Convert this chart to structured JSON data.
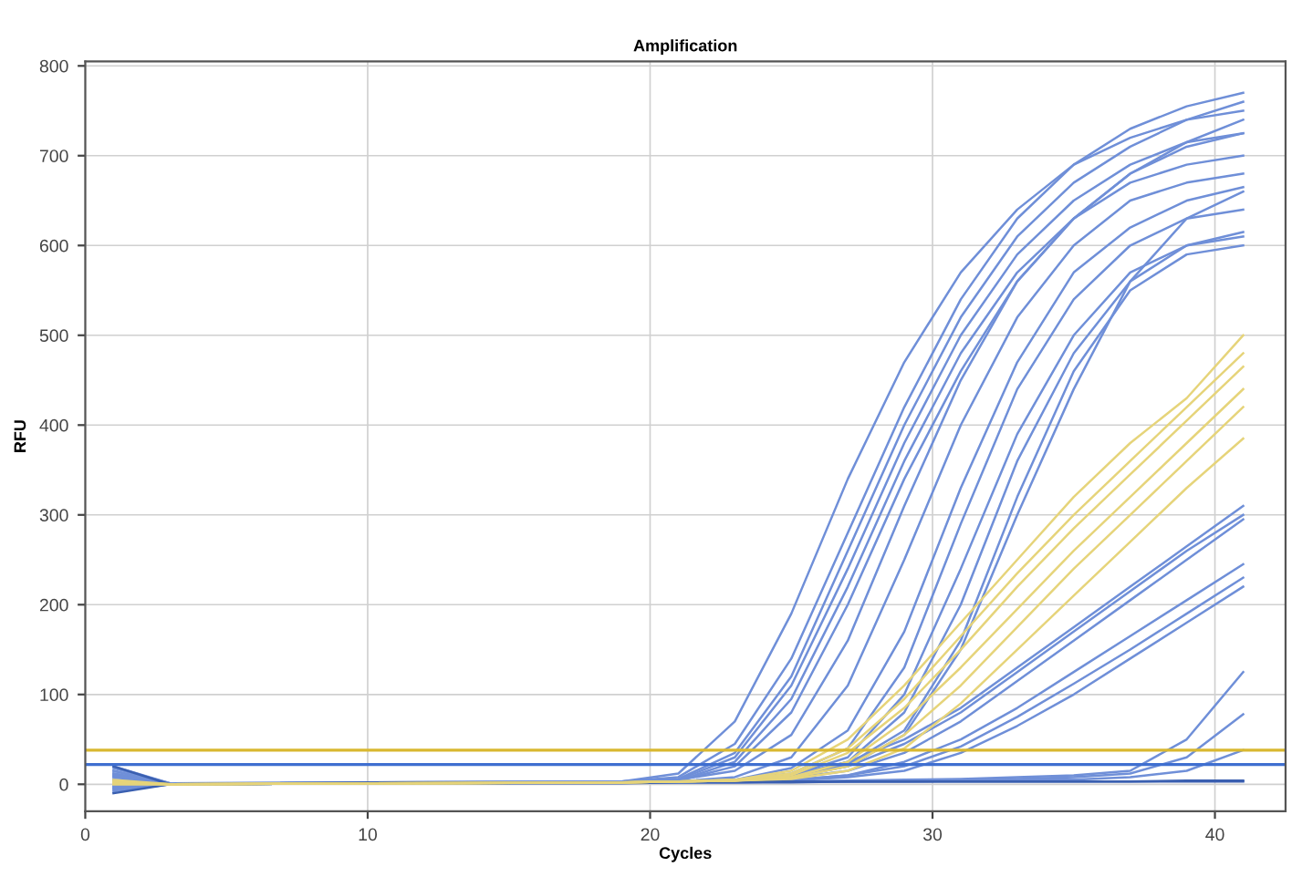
{
  "chart_data": {
    "type": "line",
    "title": "Amplification",
    "xlabel": "Cycles",
    "ylabel": "RFU",
    "xlim": [
      0,
      42.5
    ],
    "ylim": [
      -30,
      805
    ],
    "xticks": [
      0,
      10,
      20,
      30,
      40
    ],
    "yticks": [
      0,
      100,
      200,
      300,
      400,
      500,
      600,
      700,
      800
    ],
    "grid": true,
    "marker": "none",
    "line_style": "solid",
    "x": [
      1,
      3,
      10,
      19,
      21,
      23,
      25,
      27,
      29,
      31,
      33,
      35,
      37,
      39,
      41
    ],
    "series": [
      {
        "color": "#6f8fd8",
        "values": [
          15,
          0,
          2,
          3,
          12,
          70,
          190,
          340,
          470,
          570,
          640,
          690,
          720,
          740,
          750
        ]
      },
      {
        "color": "#6f8fd8",
        "values": [
          10,
          0,
          2,
          3,
          8,
          45,
          140,
          280,
          420,
          540,
          630,
          690,
          730,
          755,
          770
        ]
      },
      {
        "color": "#6f8fd8",
        "values": [
          -5,
          0,
          1,
          2,
          6,
          35,
          120,
          260,
          400,
          520,
          610,
          670,
          710,
          740,
          760
        ]
      },
      {
        "color": "#6f8fd8",
        "values": [
          20,
          1,
          2,
          3,
          5,
          30,
          110,
          240,
          380,
          500,
          590,
          650,
          690,
          715,
          725
        ]
      },
      {
        "color": "#6f8fd8",
        "values": [
          5,
          0,
          2,
          2,
          4,
          25,
          95,
          220,
          360,
          480,
          570,
          630,
          670,
          690,
          700
        ]
      },
      {
        "color": "#6f8fd8",
        "values": [
          -8,
          0,
          1,
          2,
          4,
          20,
          80,
          200,
          340,
          460,
          560,
          630,
          680,
          710,
          725
        ]
      },
      {
        "color": "#6f8fd8",
        "values": [
          12,
          0,
          2,
          3,
          5,
          15,
          55,
          160,
          310,
          450,
          560,
          630,
          680,
          715,
          740
        ]
      },
      {
        "color": "#6f8fd8",
        "values": [
          0,
          0,
          1,
          2,
          3,
          8,
          30,
          110,
          250,
          400,
          520,
          600,
          650,
          670,
          680
        ]
      },
      {
        "color": "#6f8fd8",
        "values": [
          8,
          0,
          2,
          2,
          3,
          5,
          18,
          60,
          170,
          330,
          470,
          570,
          620,
          650,
          665
        ]
      },
      {
        "color": "#6f8fd8",
        "values": [
          -3,
          0,
          1,
          2,
          3,
          5,
          12,
          40,
          130,
          290,
          440,
          540,
          600,
          630,
          640
        ]
      },
      {
        "color": "#6f8fd8",
        "values": [
          18,
          1,
          2,
          3,
          3,
          4,
          10,
          30,
          100,
          240,
          390,
          500,
          570,
          600,
          615
        ]
      },
      {
        "color": "#6f8fd8",
        "values": [
          3,
          0,
          1,
          2,
          2,
          3,
          8,
          25,
          80,
          200,
          360,
          480,
          560,
          600,
          610
        ]
      },
      {
        "color": "#6f8fd8",
        "values": [
          10,
          0,
          2,
          2,
          3,
          4,
          9,
          22,
          60,
          160,
          320,
          460,
          550,
          590,
          600
        ]
      },
      {
        "color": "#6f8fd8",
        "values": [
          -6,
          0,
          1,
          2,
          3,
          4,
          8,
          20,
          55,
          150,
          300,
          440,
          560,
          630,
          660
        ]
      },
      {
        "color": "#6f8fd8",
        "values": [
          5,
          0,
          2,
          2,
          3,
          5,
          10,
          25,
          50,
          85,
          130,
          175,
          220,
          265,
          310
        ]
      },
      {
        "color": "#6f8fd8",
        "values": [
          12,
          0,
          1,
          2,
          3,
          4,
          8,
          20,
          45,
          80,
          125,
          170,
          215,
          260,
          300
        ]
      },
      {
        "color": "#6f8fd8",
        "values": [
          0,
          0,
          1,
          2,
          3,
          4,
          7,
          15,
          35,
          70,
          115,
          160,
          205,
          250,
          295
        ]
      },
      {
        "color": "#6f8fd8",
        "values": [
          8,
          0,
          2,
          2,
          2,
          3,
          5,
          10,
          25,
          50,
          85,
          125,
          165,
          205,
          245
        ]
      },
      {
        "color": "#6f8fd8",
        "values": [
          -4,
          0,
          1,
          2,
          2,
          3,
          5,
          10,
          20,
          42,
          75,
          112,
          150,
          190,
          230
        ]
      },
      {
        "color": "#6f8fd8",
        "values": [
          15,
          0,
          1,
          2,
          2,
          3,
          4,
          8,
          15,
          35,
          65,
          100,
          140,
          180,
          220
        ]
      },
      {
        "color": "#6f8fd8",
        "values": [
          4,
          0,
          2,
          2,
          2,
          3,
          3,
          4,
          5,
          6,
          8,
          10,
          15,
          50,
          125
        ]
      },
      {
        "color": "#6f8fd8",
        "values": [
          -2,
          0,
          1,
          2,
          2,
          2,
          3,
          3,
          4,
          5,
          6,
          8,
          12,
          30,
          78
        ]
      },
      {
        "color": "#6f8fd8",
        "values": [
          10,
          0,
          1,
          2,
          2,
          2,
          3,
          3,
          3,
          4,
          5,
          5,
          8,
          15,
          38
        ]
      },
      {
        "color": "#3a5fb0",
        "values": [
          -10,
          0,
          1,
          1,
          2,
          2,
          2,
          3,
          3,
          3,
          3,
          3,
          3,
          3,
          3
        ]
      },
      {
        "color": "#3a5fb0",
        "values": [
          20,
          0,
          2,
          2,
          3,
          3,
          3,
          3,
          3,
          3,
          3,
          3,
          3,
          4,
          4
        ]
      },
      {
        "color": "#e6d47a",
        "values": [
          5,
          0,
          1,
          2,
          3,
          5,
          15,
          50,
          110,
          180,
          250,
          320,
          380,
          430,
          500
        ]
      },
      {
        "color": "#e6d47a",
        "values": [
          3,
          0,
          1,
          2,
          3,
          5,
          12,
          40,
          95,
          165,
          235,
          300,
          360,
          420,
          480
        ]
      },
      {
        "color": "#e6d47a",
        "values": [
          2,
          0,
          1,
          2,
          3,
          4,
          10,
          35,
          85,
          150,
          220,
          285,
          345,
          405,
          465
        ]
      },
      {
        "color": "#e6d47a",
        "values": [
          1,
          0,
          1,
          2,
          3,
          4,
          8,
          25,
          70,
          130,
          195,
          260,
          320,
          380,
          440
        ]
      },
      {
        "color": "#e6d47a",
        "values": [
          0,
          0,
          1,
          2,
          3,
          4,
          7,
          20,
          55,
          110,
          175,
          240,
          300,
          360,
          420
        ]
      },
      {
        "color": "#e6d47a",
        "values": [
          0,
          0,
          1,
          2,
          3,
          4,
          6,
          15,
          40,
          90,
          150,
          210,
          270,
          330,
          385
        ]
      }
    ],
    "ref_lines": [
      {
        "axis": "y",
        "value": 38,
        "color": "#d9b830"
      },
      {
        "axis": "y",
        "value": 22,
        "color": "#3f6fd0"
      }
    ]
  }
}
